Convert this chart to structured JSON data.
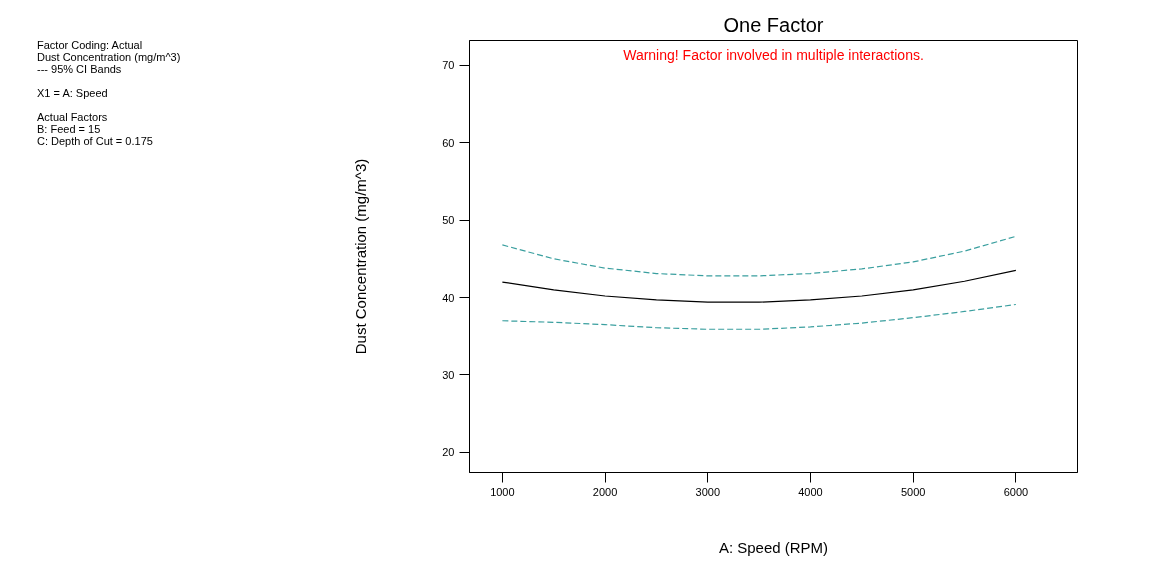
{
  "chart_data": {
    "type": "line",
    "title": "One Factor",
    "subtitle": "Warning! Factor involved in multiple interactions.",
    "xlabel": "A: Speed (RPM)",
    "ylabel": "Dust Concentration (mg/m^3)",
    "annotations": [
      "Factor Coding: Actual\nDust Concentration (mg/m^3)\n--- 95% CI Bands",
      "X1 = A: Speed",
      "Actual Factors\nB: Feed = 15\nC: Depth of Cut = 0.175"
    ],
    "x": [
      1000,
      1500,
      2000,
      2500,
      3000,
      3500,
      4000,
      4500,
      5000,
      5500,
      6000
    ],
    "series": [
      {
        "color": "#000000",
        "line_style": "solid",
        "values": [
          42.0,
          41.0,
          40.2,
          39.7,
          39.4,
          39.4,
          39.7,
          40.2,
          41.0,
          42.1,
          43.5
        ]
      },
      {
        "color": "#3a9f9f",
        "line_style": "dashed",
        "values": [
          46.8,
          45.0,
          43.8,
          43.1,
          42.8,
          42.8,
          43.1,
          43.7,
          44.6,
          46.0,
          47.9
        ]
      },
      {
        "color": "#3a9f9f",
        "line_style": "dashed",
        "values": [
          37.0,
          36.8,
          36.5,
          36.1,
          35.9,
          35.9,
          36.2,
          36.7,
          37.4,
          38.2,
          39.1
        ]
      }
    ],
    "xlim": [
      680,
      6600
    ],
    "ylim": [
      17.4,
      73.2
    ],
    "xticks": [
      1000,
      2000,
      3000,
      4000,
      5000,
      6000
    ],
    "yticks": [
      20,
      30,
      40,
      50,
      60,
      70
    ],
    "grid": false,
    "marker": "none"
  }
}
